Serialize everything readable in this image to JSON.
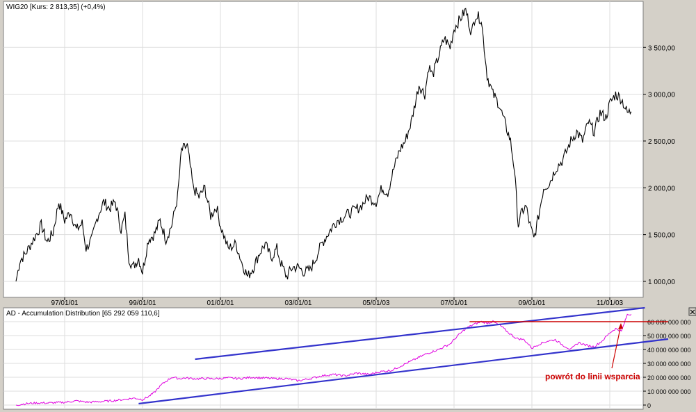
{
  "top_panel": {
    "title": "WIG20 [Kurs: 2 813,35] (+0,4%)",
    "y_ticks": [
      {
        "value": 1000,
        "label": "1 000,00"
      },
      {
        "value": 1500,
        "label": "1 500,00"
      },
      {
        "value": 2000,
        "label": "2 000,00"
      },
      {
        "value": 2500,
        "label": "2 500,00"
      },
      {
        "value": 3000,
        "label": "3 000,00"
      },
      {
        "value": 3500,
        "label": "3 500,00"
      }
    ]
  },
  "bottom_panel": {
    "title": "AD - Accumulation Distribution [65 292 059 110,6]",
    "close_icon": "close-icon",
    "y_ticks": [
      {
        "value": 0,
        "label": "0"
      },
      {
        "value": 10000000000,
        "label": "10 000 000 000"
      },
      {
        "value": 20000000000,
        "label": "20 000 000 000"
      },
      {
        "value": 30000000000,
        "label": "30 000 000 000"
      },
      {
        "value": 40000000000,
        "label": "40 000 000 000"
      },
      {
        "value": 50000000000,
        "label": "50 000 000 000"
      },
      {
        "value": 60000000000,
        "label": "60 000 000 000"
      }
    ],
    "annotation": "powrót do linii wsparcia"
  },
  "x_ticks": [
    {
      "t": 1997.0,
      "label": "97/01/01"
    },
    {
      "t": 1999.0,
      "label": "99/01/01"
    },
    {
      "t": 2001.0,
      "label": "01/01/01"
    },
    {
      "t": 2003.0,
      "label": "03/01/01"
    },
    {
      "t": 2005.0,
      "label": "05/01/03"
    },
    {
      "t": 2007.0,
      "label": "07/01/01"
    },
    {
      "t": 2009.0,
      "label": "09/01/01"
    },
    {
      "t": 2011.0,
      "label": "11/01/03"
    }
  ],
  "colors": {
    "price_line": "#000000",
    "ad_line": "#e000e0",
    "trendline": "#3333cc",
    "support_line": "#cc0000",
    "annotation_text": "#cc0000",
    "grid": "#dddddd",
    "panel_bg": "#ffffff",
    "window_bg": "#d4d0c8"
  },
  "chart_data": [
    {
      "type": "line",
      "title": "WIG20 [Kurs: 2 813,35] (+0,4%)",
      "x_unit": "year",
      "ylim": [
        900,
        3950
      ],
      "series": [
        {
          "name": "WIG20",
          "x": [
            1995.75,
            1995.85,
            1996.0,
            1996.2,
            1996.4,
            1996.55,
            1996.7,
            1996.85,
            1997.0,
            1997.15,
            1997.3,
            1997.45,
            1997.55,
            1997.7,
            1997.85,
            1998.0,
            1998.15,
            1998.3,
            1998.45,
            1998.55,
            1998.65,
            1998.75,
            1998.9,
            1999.0,
            1999.15,
            1999.3,
            1999.45,
            1999.6,
            1999.75,
            1999.9,
            2000.0,
            2000.15,
            2000.3,
            2000.45,
            2000.6,
            2000.75,
            2000.9,
            2001.0,
            2001.2,
            2001.4,
            2001.55,
            2001.7,
            2001.85,
            2002.0,
            2002.15,
            2002.3,
            2002.45,
            2002.55,
            2002.7,
            2002.85,
            2003.0,
            2003.15,
            2003.3,
            2003.45,
            2003.6,
            2003.75,
            2003.9,
            2004.0,
            2004.2,
            2004.4,
            2004.6,
            2004.8,
            2005.0,
            2005.15,
            2005.3,
            2005.45,
            2005.6,
            2005.75,
            2005.9,
            2006.0,
            2006.1,
            2006.25,
            2006.35,
            2006.45,
            2006.6,
            2006.75,
            2006.9,
            2007.0,
            2007.15,
            2007.3,
            2007.45,
            2007.55,
            2007.7,
            2007.85,
            2008.0,
            2008.15,
            2008.3,
            2008.45,
            2008.55,
            2008.65,
            2008.75,
            2008.85,
            2008.95,
            2009.05,
            2009.15,
            2009.3,
            2009.45,
            2009.6,
            2009.8,
            2010.0,
            2010.15,
            2010.3,
            2010.45,
            2010.6,
            2010.75,
            2010.9,
            2011.0,
            2011.15,
            2011.3,
            2011.45,
            2011.55
          ],
          "values": [
            1000,
            1220,
            1300,
            1450,
            1600,
            1420,
            1520,
            1850,
            1650,
            1750,
            1550,
            1620,
            1350,
            1450,
            1700,
            1850,
            1780,
            1850,
            1550,
            1700,
            1250,
            1150,
            1250,
            1100,
            1450,
            1500,
            1650,
            1450,
            1600,
            1900,
            2400,
            2450,
            2000,
            1900,
            2000,
            1700,
            1800,
            1600,
            1350,
            1400,
            1200,
            1050,
            1150,
            1300,
            1400,
            1250,
            1350,
            1200,
            1050,
            1150,
            1150,
            1100,
            1120,
            1250,
            1400,
            1500,
            1600,
            1650,
            1700,
            1750,
            1800,
            1900,
            1850,
            2000,
            1950,
            2200,
            2400,
            2500,
            2700,
            2900,
            3100,
            3000,
            3300,
            3200,
            3400,
            3600,
            3500,
            3700,
            3800,
            3900,
            3650,
            3850,
            3800,
            3200,
            3000,
            2900,
            2700,
            2500,
            2200,
            1600,
            1750,
            1800,
            1600,
            1450,
            1650,
            2000,
            2050,
            2200,
            2300,
            2500,
            2600,
            2500,
            2700,
            2600,
            2800,
            2750,
            2900,
            3000,
            2950,
            2800,
            2813
          ]
        }
      ]
    },
    {
      "type": "line",
      "title": "AD - Accumulation Distribution [65 292 059 110,6]",
      "x_unit": "year",
      "ylim": [
        0,
        65000000000
      ],
      "series": [
        {
          "name": "AD - Accumulation Distribution",
          "x": [
            1995.75,
            1996.0,
            1996.3,
            1996.6,
            1997.0,
            1997.3,
            1997.6,
            1997.9,
            1998.2,
            1998.5,
            1998.8,
            1999.0,
            1999.15,
            1999.3,
            1999.5,
            1999.75,
            1999.95,
            2000.1,
            2000.3,
            2000.6,
            2000.9,
            2001.2,
            2001.5,
            2001.8,
            2002.1,
            2002.4,
            2002.7,
            2003.0,
            2003.3,
            2003.6,
            2003.9,
            2004.2,
            2004.5,
            2004.8,
            2005.1,
            2005.4,
            2005.7,
            2006.0,
            2006.3,
            2006.6,
            2006.9,
            2007.1,
            2007.3,
            2007.5,
            2007.7,
            2007.85,
            2008.0,
            2008.2,
            2008.4,
            2008.6,
            2008.8,
            2009.0,
            2009.2,
            2009.4,
            2009.6,
            2009.8,
            2010.0,
            2010.2,
            2010.4,
            2010.6,
            2010.8,
            2011.0,
            2011.15,
            2011.3,
            2011.45,
            2011.55
          ],
          "values": [
            0,
            1000000000,
            1500000000,
            1500000000,
            2000000000,
            3000000000,
            2000000000,
            2500000000,
            3000000000,
            4000000000,
            5000000000,
            4000000000,
            6000000000,
            9000000000,
            15000000000,
            20000000000,
            19000000000,
            19500000000,
            19000000000,
            19000000000,
            19000000000,
            19500000000,
            19000000000,
            20000000000,
            19500000000,
            19000000000,
            19000000000,
            17500000000,
            19000000000,
            21000000000,
            22000000000,
            21000000000,
            23000000000,
            22000000000,
            24000000000,
            25000000000,
            29000000000,
            33000000000,
            37000000000,
            40000000000,
            44000000000,
            50000000000,
            55000000000,
            58000000000,
            60000000000,
            59000000000,
            60000000000,
            57000000000,
            52000000000,
            48000000000,
            47000000000,
            41000000000,
            44000000000,
            46000000000,
            47000000000,
            43000000000,
            40000000000,
            45000000000,
            43000000000,
            42000000000,
            46000000000,
            52000000000,
            55000000000,
            53000000000,
            65000000000,
            65292059110
          ]
        }
      ],
      "trendlines": [
        {
          "name": "upper",
          "x": [
            2000.35,
            2011.9
          ],
          "values": [
            33000000000,
            70000000000
          ]
        },
        {
          "name": "lower",
          "x": [
            1998.9,
            2012.5
          ],
          "values": [
            1000000000,
            47500000000
          ]
        },
        {
          "name": "support",
          "x": [
            2007.4,
            2012.5
          ],
          "values": [
            60000000000,
            60000000000
          ]
        }
      ]
    }
  ]
}
